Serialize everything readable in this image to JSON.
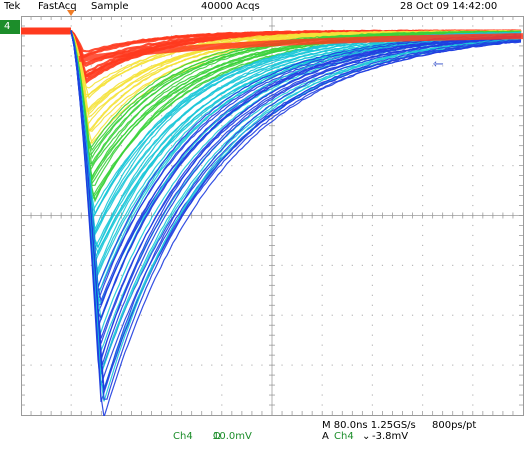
{
  "header": {
    "brand": "Tek",
    "mode": "FastAcq",
    "acq_mode": "Sample",
    "acq_count": "40000 Acqs",
    "datetime": "28 Oct 09 14:42:00"
  },
  "channel_marker": {
    "label": "4"
  },
  "arrow_label": "⇽",
  "footer": {
    "channel": "Ch4",
    "vscale": "10.0mV",
    "coupling": "Ω",
    "timebase": "M 80.0ns 1.25GS/s",
    "pt_rate": "800ps/pt",
    "trigger_prefix": "A",
    "trigger_channel": "Ch4",
    "trigger_slope": "⌄",
    "trigger_level": "-3.8mV"
  },
  "colors": {
    "trace_hot": "#ff3a1e",
    "trace_warm": "#f5e23a",
    "trace_mid": "#3bd23b",
    "trace_cool": "#19c7d8",
    "trace_cold": "#1e3de0",
    "channel": "#1c8d2a",
    "trigger_marker": "#f07d28",
    "grid": "#b9b9b9"
  }
}
